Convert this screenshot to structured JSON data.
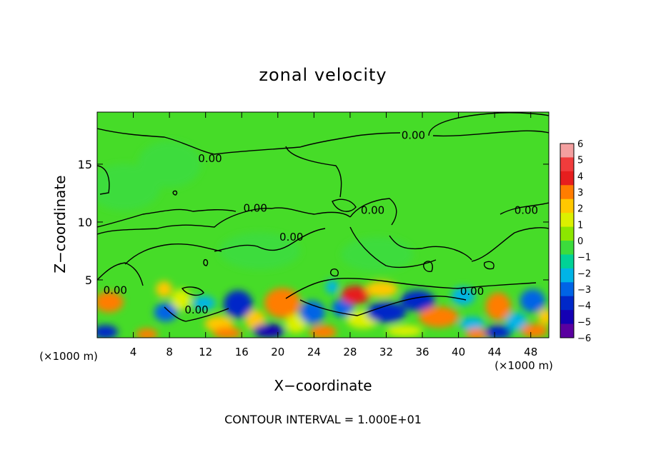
{
  "chart_data": {
    "type": "heatmap",
    "title": "zonal velocity",
    "xlabel": "X−coordinate",
    "ylabel": "Z−coordinate",
    "x_unit_left": "(×1000 m)",
    "x_unit_right": "(×1000 m)",
    "footer": "CONTOUR INTERVAL = 1.000E+01",
    "xlim": [
      0,
      50
    ],
    "ylim": [
      0,
      19.5
    ],
    "x_ticks": [
      4,
      8,
      12,
      16,
      20,
      24,
      28,
      32,
      36,
      40,
      44,
      48
    ],
    "y_ticks": [
      5,
      10,
      15
    ],
    "colorbar": {
      "ticks": [
        "6",
        "5",
        "4",
        "3",
        "2",
        "1",
        "0",
        "−1",
        "−2",
        "−3",
        "−4",
        "−5",
        "−6"
      ],
      "colors": [
        "#f4a0a0",
        "#f03c3c",
        "#e61e1e",
        "#ff7d00",
        "#ffc800",
        "#dcf000",
        "#8ce600",
        "#3cdc3c",
        "#00d296",
        "#00b4e6",
        "#0064e6",
        "#0028c8",
        "#1400b4",
        "#5a00a0"
      ]
    },
    "background_color": "#46dc28",
    "contour_labels": [
      {
        "text": "0.00",
        "x": 12.5,
        "y": 15.5
      },
      {
        "text": "0.00",
        "x": 35,
        "y": 17.5
      },
      {
        "text": "0.00",
        "x": 17.5,
        "y": 11.2
      },
      {
        "text": "0.00",
        "x": 30.5,
        "y": 11
      },
      {
        "text": "0.00",
        "x": 47.5,
        "y": 11
      },
      {
        "text": "0.00",
        "x": 21.5,
        "y": 8.7
      },
      {
        "text": "0.00",
        "x": 2,
        "y": 4.1
      },
      {
        "text": "0.00",
        "x": 11,
        "y": 2.4
      },
      {
        "text": "0.00",
        "x": 41.5,
        "y": 4
      }
    ],
    "anomalies": [
      {
        "x": 1.3,
        "y": 3.1,
        "v": 3.6,
        "rx": 1.6,
        "ry": 0.9
      },
      {
        "x": 0.9,
        "y": 0.5,
        "v": -4.5,
        "rx": 1.4,
        "ry": 0.6
      },
      {
        "x": 5.5,
        "y": 0.3,
        "v": 2.8,
        "rx": 1.2,
        "ry": 0.5
      },
      {
        "x": 7.4,
        "y": 4.2,
        "v": 2.6,
        "rx": 0.9,
        "ry": 0.7
      },
      {
        "x": 7.6,
        "y": 2.2,
        "v": -3.2,
        "rx": 1.3,
        "ry": 0.8
      },
      {
        "x": 9.3,
        "y": 3.3,
        "v": 1.6,
        "rx": 1.1,
        "ry": 0.9
      },
      {
        "x": 11.8,
        "y": 3.0,
        "v": -2.0,
        "rx": 1.3,
        "ry": 0.6
      },
      {
        "x": 13.5,
        "y": 1.2,
        "v": 2.2,
        "rx": 1.6,
        "ry": 0.7
      },
      {
        "x": 15.6,
        "y": 2.9,
        "v": -4.6,
        "rx": 1.6,
        "ry": 1.2
      },
      {
        "x": 14.4,
        "y": 0.4,
        "v": 3.0,
        "rx": 1.6,
        "ry": 0.5
      },
      {
        "x": 17.5,
        "y": 1.5,
        "v": 2.0,
        "rx": 1.1,
        "ry": 0.9
      },
      {
        "x": 20.5,
        "y": 3.0,
        "v": 3.6,
        "rx": 2.0,
        "ry": 1.3
      },
      {
        "x": 19.0,
        "y": 0.6,
        "v": -4.8,
        "rx": 1.8,
        "ry": 0.6
      },
      {
        "x": 22.0,
        "y": 1.2,
        "v": 1.5,
        "rx": 1.2,
        "ry": 0.8
      },
      {
        "x": 23.8,
        "y": 2.2,
        "v": -3.6,
        "rx": 1.4,
        "ry": 1.0
      },
      {
        "x": 25.0,
        "y": 0.5,
        "v": 3.6,
        "rx": 1.5,
        "ry": 0.6
      },
      {
        "x": 26.0,
        "y": 4.4,
        "v": -2.5,
        "rx": 0.7,
        "ry": 0.6
      },
      {
        "x": 27.2,
        "y": 2.6,
        "v": -3.0,
        "rx": 1.2,
        "ry": 0.8
      },
      {
        "x": 28.6,
        "y": 3.7,
        "v": 3.8,
        "rx": 1.6,
        "ry": 0.8
      },
      {
        "x": 29.4,
        "y": 1.6,
        "v": 1.8,
        "rx": 1.8,
        "ry": 0.8
      },
      {
        "x": 32.0,
        "y": 2.2,
        "v": -4.2,
        "rx": 2.2,
        "ry": 0.9
      },
      {
        "x": 35.5,
        "y": 3.2,
        "v": -4.0,
        "rx": 1.9,
        "ry": 0.9
      },
      {
        "x": 31.5,
        "y": 4.2,
        "v": 2.2,
        "rx": 1.8,
        "ry": 0.7
      },
      {
        "x": 37.8,
        "y": 1.8,
        "v": 3.0,
        "rx": 2.2,
        "ry": 0.9
      },
      {
        "x": 34.0,
        "y": 0.6,
        "v": 1.5,
        "rx": 2.0,
        "ry": 0.5
      },
      {
        "x": 40.5,
        "y": 3.6,
        "v": -2.0,
        "rx": 1.3,
        "ry": 0.8
      },
      {
        "x": 41.5,
        "y": 1.2,
        "v": -2.6,
        "rx": 1.4,
        "ry": 0.6
      },
      {
        "x": 42.0,
        "y": 0.3,
        "v": 3.0,
        "rx": 1.2,
        "ry": 0.5
      },
      {
        "x": 44.4,
        "y": 2.7,
        "v": 3.4,
        "rx": 1.4,
        "ry": 1.2
      },
      {
        "x": 44.4,
        "y": 0.5,
        "v": -4.6,
        "rx": 1.5,
        "ry": 0.6
      },
      {
        "x": 46.4,
        "y": 1.4,
        "v": -2.6,
        "rx": 1.2,
        "ry": 0.8
      },
      {
        "x": 48.2,
        "y": 3.2,
        "v": -3.2,
        "rx": 1.4,
        "ry": 1.0
      },
      {
        "x": 48.4,
        "y": 0.6,
        "v": 3.0,
        "rx": 1.5,
        "ry": 0.6
      },
      {
        "x": 49.6,
        "y": 1.8,
        "v": 2.0,
        "rx": 0.8,
        "ry": 0.7
      },
      {
        "x": 3.0,
        "y": 13.0,
        "v": -0.5,
        "rx": 4.0,
        "ry": 2.0
      },
      {
        "x": 18.0,
        "y": 7.5,
        "v": -0.6,
        "rx": 4.5,
        "ry": 1.6
      },
      {
        "x": 31.0,
        "y": 7.2,
        "v": -0.5,
        "rx": 4.0,
        "ry": 1.5
      },
      {
        "x": 8.0,
        "y": 15.0,
        "v": -0.4,
        "rx": 3.5,
        "ry": 2.0
      }
    ]
  }
}
